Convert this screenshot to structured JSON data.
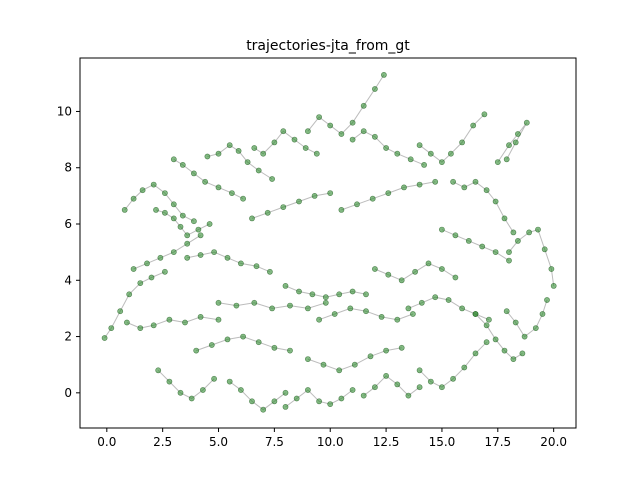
{
  "chart_data": {
    "type": "scatter",
    "title": "trajectories-jta_from_gt",
    "xlabel": "",
    "ylabel": "",
    "xlim": [
      -1.2,
      21.0
    ],
    "ylim": [
      -1.25,
      11.9
    ],
    "x_ticks": [
      0.0,
      2.5,
      5.0,
      7.5,
      10.0,
      12.5,
      15.0,
      17.5,
      20.0
    ],
    "x_tick_labels": [
      "0.0",
      "2.5",
      "5.0",
      "7.5",
      "10.0",
      "12.5",
      "15.0",
      "17.5",
      "20.0"
    ],
    "y_ticks": [
      0,
      2,
      4,
      6,
      8,
      10
    ],
    "y_tick_labels": [
      "0",
      "2",
      "4",
      "6",
      "8",
      "10"
    ],
    "grid": false,
    "legend": "none",
    "colors": {
      "point_fill": "#2e8b2e",
      "point_edge": "#0b4d0b",
      "line": "#7a7a7a"
    },
    "series": [
      {
        "values_note": "",
        "points": [
          [
            -0.1,
            1.95
          ],
          [
            0.2,
            2.3
          ],
          [
            0.6,
            2.9
          ],
          [
            1.0,
            3.5
          ],
          [
            1.5,
            3.9
          ],
          [
            2.0,
            4.1
          ],
          [
            2.6,
            4.3
          ]
        ]
      },
      {
        "points": [
          [
            0.8,
            6.5
          ],
          [
            1.2,
            6.9
          ],
          [
            1.6,
            7.2
          ],
          [
            2.1,
            7.4
          ],
          [
            2.6,
            7.1
          ],
          [
            3.0,
            6.7
          ],
          [
            3.4,
            6.3
          ],
          [
            3.9,
            6.1
          ]
        ]
      },
      {
        "points": [
          [
            2.2,
            6.5
          ],
          [
            2.6,
            6.4
          ],
          [
            3.0,
            6.2
          ],
          [
            3.3,
            5.9
          ],
          [
            3.6,
            5.6
          ],
          [
            4.1,
            5.8
          ],
          [
            4.6,
            6.0
          ]
        ]
      },
      {
        "points": [
          [
            3.0,
            8.3
          ],
          [
            3.4,
            8.1
          ],
          [
            3.9,
            7.8
          ],
          [
            4.4,
            7.5
          ],
          [
            5.0,
            7.3
          ],
          [
            5.6,
            7.1
          ],
          [
            6.1,
            6.9
          ]
        ]
      },
      {
        "points": [
          [
            4.5,
            8.4
          ],
          [
            5.0,
            8.5
          ],
          [
            5.5,
            8.8
          ],
          [
            5.9,
            8.6
          ],
          [
            6.3,
            8.2
          ],
          [
            6.8,
            7.9
          ],
          [
            7.4,
            7.6
          ]
        ]
      },
      {
        "points": [
          [
            6.6,
            8.7
          ],
          [
            7.0,
            8.5
          ],
          [
            7.5,
            8.9
          ],
          [
            7.9,
            9.3
          ],
          [
            8.4,
            9.0
          ],
          [
            8.9,
            8.7
          ],
          [
            9.4,
            8.5
          ]
        ]
      },
      {
        "points": [
          [
            9.0,
            9.3
          ],
          [
            9.5,
            9.8
          ],
          [
            10.0,
            9.5
          ],
          [
            10.5,
            9.2
          ],
          [
            11.0,
            9.6
          ],
          [
            11.5,
            10.2
          ],
          [
            12.0,
            10.8
          ],
          [
            12.4,
            11.3
          ]
        ]
      },
      {
        "points": [
          [
            11.0,
            9.0
          ],
          [
            11.5,
            9.3
          ],
          [
            12.0,
            9.1
          ],
          [
            12.5,
            8.7
          ],
          [
            13.0,
            8.5
          ],
          [
            13.6,
            8.3
          ],
          [
            14.2,
            8.1
          ]
        ]
      },
      {
        "points": [
          [
            14.0,
            8.8
          ],
          [
            14.5,
            8.5
          ],
          [
            15.0,
            8.2
          ],
          [
            15.4,
            8.5
          ],
          [
            15.9,
            8.9
          ],
          [
            16.4,
            9.5
          ],
          [
            16.9,
            9.9
          ]
        ]
      },
      {
        "points": [
          [
            15.5,
            7.5
          ],
          [
            16.0,
            7.3
          ],
          [
            16.5,
            7.5
          ],
          [
            17.0,
            7.2
          ],
          [
            17.4,
            6.8
          ],
          [
            17.8,
            6.2
          ],
          [
            18.2,
            5.7
          ]
        ]
      },
      {
        "points": [
          [
            17.5,
            8.2
          ],
          [
            18.0,
            8.8
          ],
          [
            18.4,
            9.2
          ],
          [
            18.8,
            9.6
          ],
          [
            18.3,
            8.9
          ],
          [
            17.9,
            8.3
          ]
        ]
      },
      {
        "points": [
          [
            18.0,
            5.0
          ],
          [
            18.4,
            5.4
          ],
          [
            18.9,
            5.7
          ],
          [
            19.3,
            5.8
          ],
          [
            19.6,
            5.1
          ],
          [
            19.9,
            4.4
          ],
          [
            20.0,
            3.8
          ]
        ]
      },
      {
        "points": [
          [
            17.9,
            2.9
          ],
          [
            18.3,
            2.5
          ],
          [
            18.7,
            2.0
          ],
          [
            19.2,
            2.3
          ],
          [
            19.5,
            2.8
          ],
          [
            19.7,
            3.3
          ]
        ]
      },
      {
        "points": [
          [
            16.5,
            2.8
          ],
          [
            17.0,
            2.4
          ],
          [
            17.4,
            1.9
          ],
          [
            17.8,
            1.5
          ],
          [
            18.2,
            1.2
          ],
          [
            18.6,
            1.4
          ]
        ]
      },
      {
        "points": [
          [
            14.0,
            0.8
          ],
          [
            14.5,
            0.4
          ],
          [
            15.0,
            0.2
          ],
          [
            15.5,
            0.5
          ],
          [
            16.0,
            0.9
          ],
          [
            16.5,
            1.4
          ],
          [
            17.0,
            1.8
          ]
        ]
      },
      {
        "points": [
          [
            11.5,
            -0.1
          ],
          [
            12.0,
            0.2
          ],
          [
            12.5,
            0.6
          ],
          [
            13.0,
            0.3
          ],
          [
            13.5,
            -0.1
          ],
          [
            14.0,
            0.2
          ]
        ]
      },
      {
        "points": [
          [
            8.0,
            -0.5
          ],
          [
            8.5,
            -0.2
          ],
          [
            9.0,
            0.1
          ],
          [
            9.5,
            -0.3
          ],
          [
            10.0,
            -0.4
          ],
          [
            10.5,
            -0.2
          ],
          [
            11.0,
            0.1
          ]
        ]
      },
      {
        "points": [
          [
            5.5,
            0.4
          ],
          [
            6.0,
            0.1
          ],
          [
            6.5,
            -0.3
          ],
          [
            7.0,
            -0.6
          ],
          [
            7.5,
            -0.3
          ],
          [
            8.0,
            0.0
          ]
        ]
      },
      {
        "points": [
          [
            2.3,
            0.8
          ],
          [
            2.8,
            0.4
          ],
          [
            3.3,
            0.0
          ],
          [
            3.8,
            -0.2
          ],
          [
            4.3,
            0.1
          ],
          [
            4.8,
            0.5
          ]
        ]
      },
      {
        "points": [
          [
            0.9,
            2.5
          ],
          [
            1.5,
            2.3
          ],
          [
            2.1,
            2.4
          ],
          [
            2.8,
            2.6
          ],
          [
            3.5,
            2.5
          ],
          [
            4.2,
            2.7
          ],
          [
            5.0,
            2.6
          ]
        ]
      },
      {
        "points": [
          [
            3.6,
            4.8
          ],
          [
            4.2,
            4.9
          ],
          [
            4.8,
            5.0
          ],
          [
            5.4,
            4.8
          ],
          [
            6.0,
            4.6
          ],
          [
            6.7,
            4.5
          ],
          [
            7.3,
            4.3
          ]
        ]
      },
      {
        "points": [
          [
            5.0,
            3.2
          ],
          [
            5.8,
            3.1
          ],
          [
            6.6,
            3.2
          ],
          [
            7.4,
            3.0
          ],
          [
            8.2,
            3.1
          ],
          [
            9.0,
            3.0
          ],
          [
            9.8,
            3.2
          ]
        ]
      },
      {
        "points": [
          [
            8.0,
            3.8
          ],
          [
            8.6,
            3.6
          ],
          [
            9.2,
            3.5
          ],
          [
            9.8,
            3.4
          ],
          [
            10.4,
            3.5
          ],
          [
            11.0,
            3.6
          ],
          [
            11.6,
            3.5
          ]
        ]
      },
      {
        "points": [
          [
            9.5,
            2.6
          ],
          [
            10.2,
            2.8
          ],
          [
            10.9,
            3.0
          ],
          [
            11.6,
            2.9
          ],
          [
            12.3,
            2.7
          ],
          [
            13.0,
            2.6
          ],
          [
            13.7,
            2.8
          ]
        ]
      },
      {
        "points": [
          [
            12.0,
            4.4
          ],
          [
            12.6,
            4.2
          ],
          [
            13.2,
            4.0
          ],
          [
            13.8,
            4.3
          ],
          [
            14.4,
            4.6
          ],
          [
            15.0,
            4.4
          ],
          [
            15.6,
            4.1
          ]
        ]
      },
      {
        "points": [
          [
            13.5,
            3.0
          ],
          [
            14.1,
            3.2
          ],
          [
            14.7,
            3.4
          ],
          [
            15.3,
            3.3
          ],
          [
            15.9,
            3.0
          ],
          [
            16.5,
            2.8
          ],
          [
            17.1,
            2.6
          ]
        ]
      },
      {
        "points": [
          [
            10.5,
            6.5
          ],
          [
            11.2,
            6.7
          ],
          [
            11.9,
            6.9
          ],
          [
            12.6,
            7.1
          ],
          [
            13.3,
            7.3
          ],
          [
            14.0,
            7.4
          ],
          [
            14.7,
            7.5
          ]
        ]
      },
      {
        "points": [
          [
            6.5,
            6.2
          ],
          [
            7.2,
            6.4
          ],
          [
            7.9,
            6.6
          ],
          [
            8.6,
            6.8
          ],
          [
            9.3,
            7.0
          ],
          [
            10.0,
            7.1
          ]
        ]
      },
      {
        "points": [
          [
            4.0,
            1.5
          ],
          [
            4.7,
            1.7
          ],
          [
            5.4,
            1.9
          ],
          [
            6.1,
            2.0
          ],
          [
            6.8,
            1.8
          ],
          [
            7.5,
            1.6
          ],
          [
            8.2,
            1.5
          ]
        ]
      },
      {
        "points": [
          [
            9.0,
            1.2
          ],
          [
            9.7,
            1.0
          ],
          [
            10.4,
            0.8
          ],
          [
            11.1,
            1.0
          ],
          [
            11.8,
            1.3
          ],
          [
            12.5,
            1.5
          ],
          [
            13.2,
            1.6
          ]
        ]
      },
      {
        "points": [
          [
            15.0,
            5.8
          ],
          [
            15.6,
            5.6
          ],
          [
            16.2,
            5.4
          ],
          [
            16.8,
            5.2
          ],
          [
            17.4,
            5.0
          ],
          [
            18.0,
            4.7
          ]
        ]
      },
      {
        "points": [
          [
            1.2,
            4.4
          ],
          [
            1.8,
            4.6
          ],
          [
            2.4,
            4.8
          ],
          [
            3.0,
            5.0
          ],
          [
            3.6,
            5.3
          ],
          [
            4.2,
            5.6
          ]
        ]
      }
    ]
  }
}
